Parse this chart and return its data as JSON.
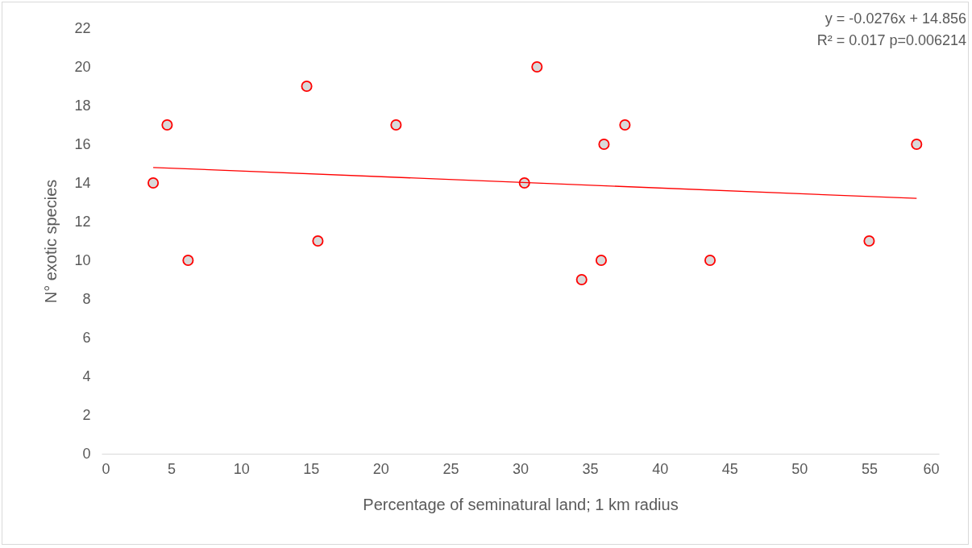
{
  "chart_data": {
    "type": "scatter",
    "xlabel": "Percentage of seminatural land; 1 km radius",
    "ylabel": "N° exotic species",
    "xlim": [
      0,
      60
    ],
    "ylim": [
      0,
      22
    ],
    "xticks": [
      0,
      5,
      10,
      15,
      20,
      25,
      30,
      35,
      40,
      45,
      50,
      55,
      60
    ],
    "yticks": [
      0,
      2,
      4,
      6,
      8,
      10,
      12,
      14,
      16,
      18,
      20,
      22
    ],
    "marker": "circle",
    "series": [
      {
        "color": "#ff0000",
        "x": [
          3.7,
          4.7,
          6.2,
          14.7,
          15.5,
          21.1,
          30.3,
          31.2,
          34.4,
          35.8,
          36.0,
          37.5,
          43.6,
          55.0,
          58.4
        ],
        "values": [
          14,
          17,
          10,
          19,
          11,
          17,
          14,
          20,
          9,
          10,
          16,
          17,
          10,
          11,
          16
        ]
      },
      {
        "type": "line",
        "marker": "none",
        "color": "#ff0000",
        "x": [
          3.7,
          58.4
        ],
        "values": [
          14.8,
          13.2
        ]
      }
    ],
    "annotations": [
      "y = -0.0276x + 14.856",
      "R² = 0.017 p=0.006214"
    ]
  }
}
